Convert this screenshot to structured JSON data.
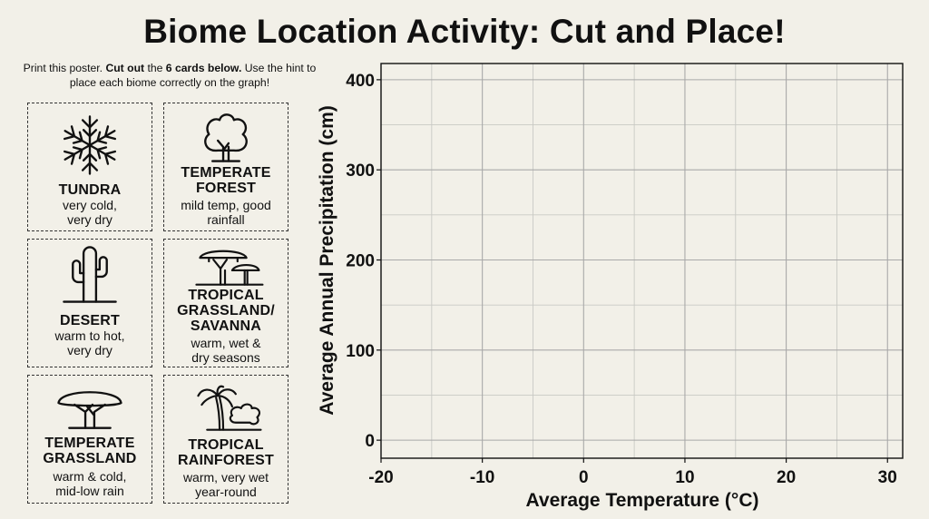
{
  "title": "Biome Location Activity: Cut and Place!",
  "instructions": {
    "part1": "Print this poster. ",
    "bold1": "Cut out",
    "part2": " the ",
    "bold2": "6 cards below.",
    "part3": " Use the hint to place each biome correctly on the graph!"
  },
  "cards": [
    {
      "name": "TUNDRA",
      "desc": "very cold, very dry",
      "icon": "snowflake-icon"
    },
    {
      "name": "TEMPERATE FOREST",
      "desc": "mild temp, good rainfall",
      "icon": "deciduous-tree-icon"
    },
    {
      "name": "DESERT",
      "desc": "warm to hot, very dry",
      "icon": "cactus-icon"
    },
    {
      "name": "TROPICAL GRASSLAND/ SAVANNA",
      "desc": "warm, wet & dry seasons",
      "icon": "acacia-trees-icon"
    },
    {
      "name": "TEMPERATE GRASSLAND",
      "desc": "warm & cold, mid-low rain",
      "icon": "umbrella-tree-icon"
    },
    {
      "name": "TROPICAL RAINFOREST",
      "desc": "warm, very wet year-round",
      "icon": "palm-tree-icon"
    }
  ],
  "chart_data": {
    "type": "scatter",
    "xlabel": "Average Temperature (°C)",
    "ylabel": "Average Annual Precipitation (cm)",
    "xlim": [
      -20,
      31.5
    ],
    "ylim": [
      -20,
      418
    ],
    "xticks": [
      -20,
      -10,
      0,
      10,
      20,
      30
    ],
    "yticks": [
      0,
      100,
      200,
      300,
      400
    ],
    "grid": true,
    "minor_grid_step_x": 5,
    "minor_grid_step_y": 50,
    "series": []
  }
}
